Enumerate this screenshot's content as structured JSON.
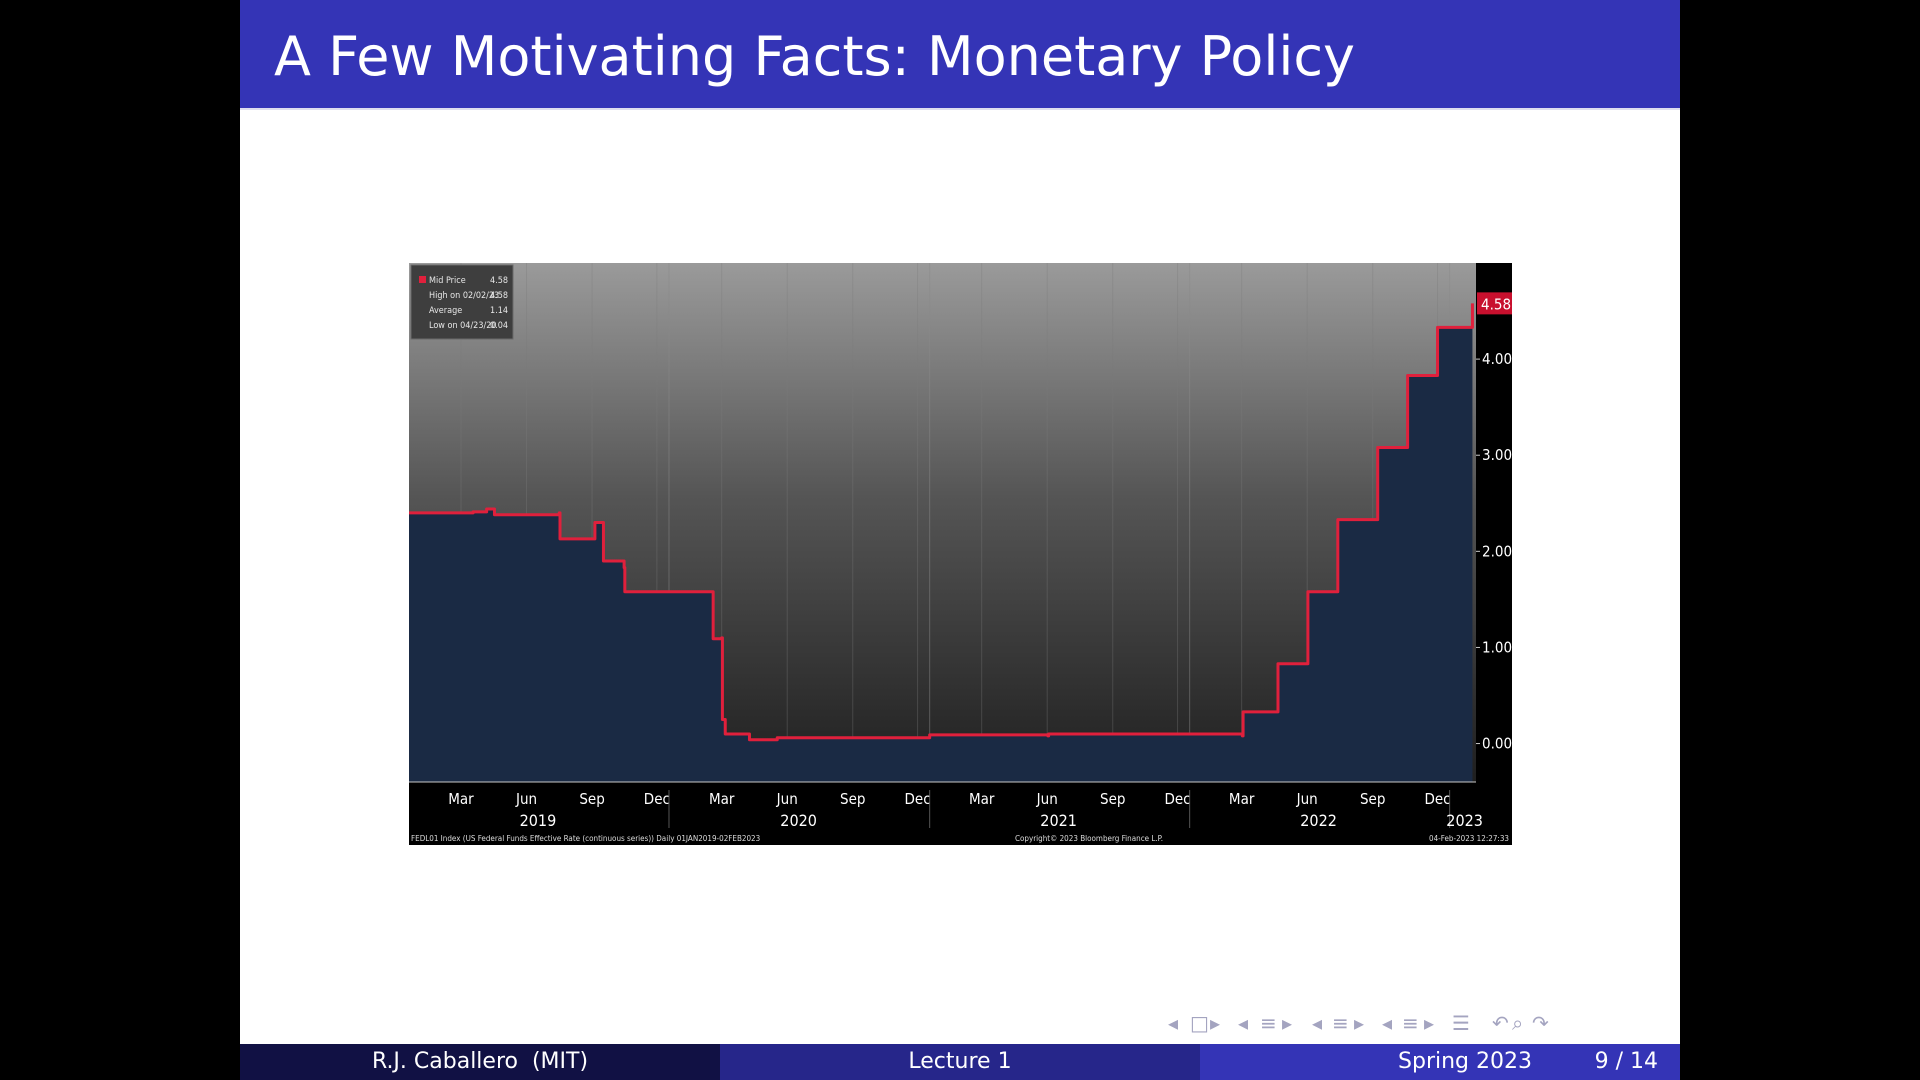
{
  "slide": {
    "title": "A Few Motivating Facts: Monetary Policy"
  },
  "footer": {
    "author": "R.J. Caballero  (MIT)",
    "lecture": "Lecture 1",
    "date": "Spring 2023",
    "page": "9 / 14"
  },
  "navigation": {
    "icons": [
      "prev-arrow-icon",
      "frame-icon",
      "next-arrow-icon",
      "prev-arrow-icon",
      "subsection-icon",
      "next-arrow-icon",
      "prev-arrow-icon",
      "section-icon",
      "next-arrow-icon",
      "prev-arrow-icon",
      "document-icon",
      "next-arrow-icon",
      "menu-icon",
      "back-icon",
      "search-icon",
      "forward-icon"
    ]
  },
  "colors": {
    "title_bar": "#3434b6",
    "series_line": "#e0203c",
    "area_top": "#5a7aa0",
    "area_bottom": "#1c2e48"
  },
  "chart_data": {
    "type": "line",
    "y_axis_ticks": [
      "0.00",
      "1.00",
      "2.00",
      "3.00",
      "4.00"
    ],
    "ylim": [
      -0.4,
      5.0
    ],
    "last_value_label": "4.58",
    "x_month_labels": [
      "Mar",
      "Jun",
      "Sep",
      "Dec",
      "Mar",
      "Jun",
      "Sep",
      "Dec",
      "Mar",
      "Jun",
      "Sep",
      "Dec",
      "Mar",
      "Jun",
      "Sep",
      "Dec"
    ],
    "x_year_labels": [
      "2019",
      "2020",
      "2021",
      "2022",
      "2023"
    ],
    "legend": [
      {
        "label": "Mid Price",
        "value": "4.58"
      },
      {
        "label": "High on 02/02/23",
        "value": "4.58"
      },
      {
        "label": "Average",
        "value": "1.14"
      },
      {
        "label": "Low on 04/23/20",
        "value": "0.04"
      }
    ],
    "source_note": "FEDL01 Index (US Federal Funds Effective Rate (continuous series))  Daily 01JAN2019-02FEB2023",
    "copyright": "Copyright© 2023 Bloomberg Finance L.P.",
    "timestamp": "04-Feb-2023 12:27:33",
    "series": [
      {
        "name": "Mid Price",
        "x": [
          "2019-01-01",
          "2019-04-01",
          "2019-04-20",
          "2019-05-01",
          "2019-07-31",
          "2019-08-01",
          "2019-09-18",
          "2019-09-19",
          "2019-10-01",
          "2019-10-30",
          "2019-10-31",
          "2020-03-02",
          "2020-03-03",
          "2020-03-15",
          "2020-03-16",
          "2020-03-20",
          "2020-04-23",
          "2020-06-01",
          "2021-01-01",
          "2021-06-16",
          "2021-06-17",
          "2022-03-16",
          "2022-03-17",
          "2022-05-04",
          "2022-05-05",
          "2022-06-15",
          "2022-06-16",
          "2022-07-27",
          "2022-07-28",
          "2022-09-21",
          "2022-09-22",
          "2022-11-02",
          "2022-11-03",
          "2022-12-14",
          "2022-12-15",
          "2023-02-01",
          "2023-02-02"
        ],
        "y": [
          2.4,
          2.41,
          2.44,
          2.38,
          2.4,
          2.13,
          2.13,
          2.3,
          1.9,
          1.83,
          1.58,
          1.58,
          1.09,
          1.1,
          0.25,
          0.1,
          0.04,
          0.06,
          0.09,
          0.08,
          0.1,
          0.08,
          0.33,
          0.33,
          0.83,
          0.83,
          1.58,
          1.58,
          2.33,
          2.33,
          3.08,
          3.08,
          3.83,
          3.83,
          4.33,
          4.33,
          4.58
        ]
      }
    ]
  }
}
